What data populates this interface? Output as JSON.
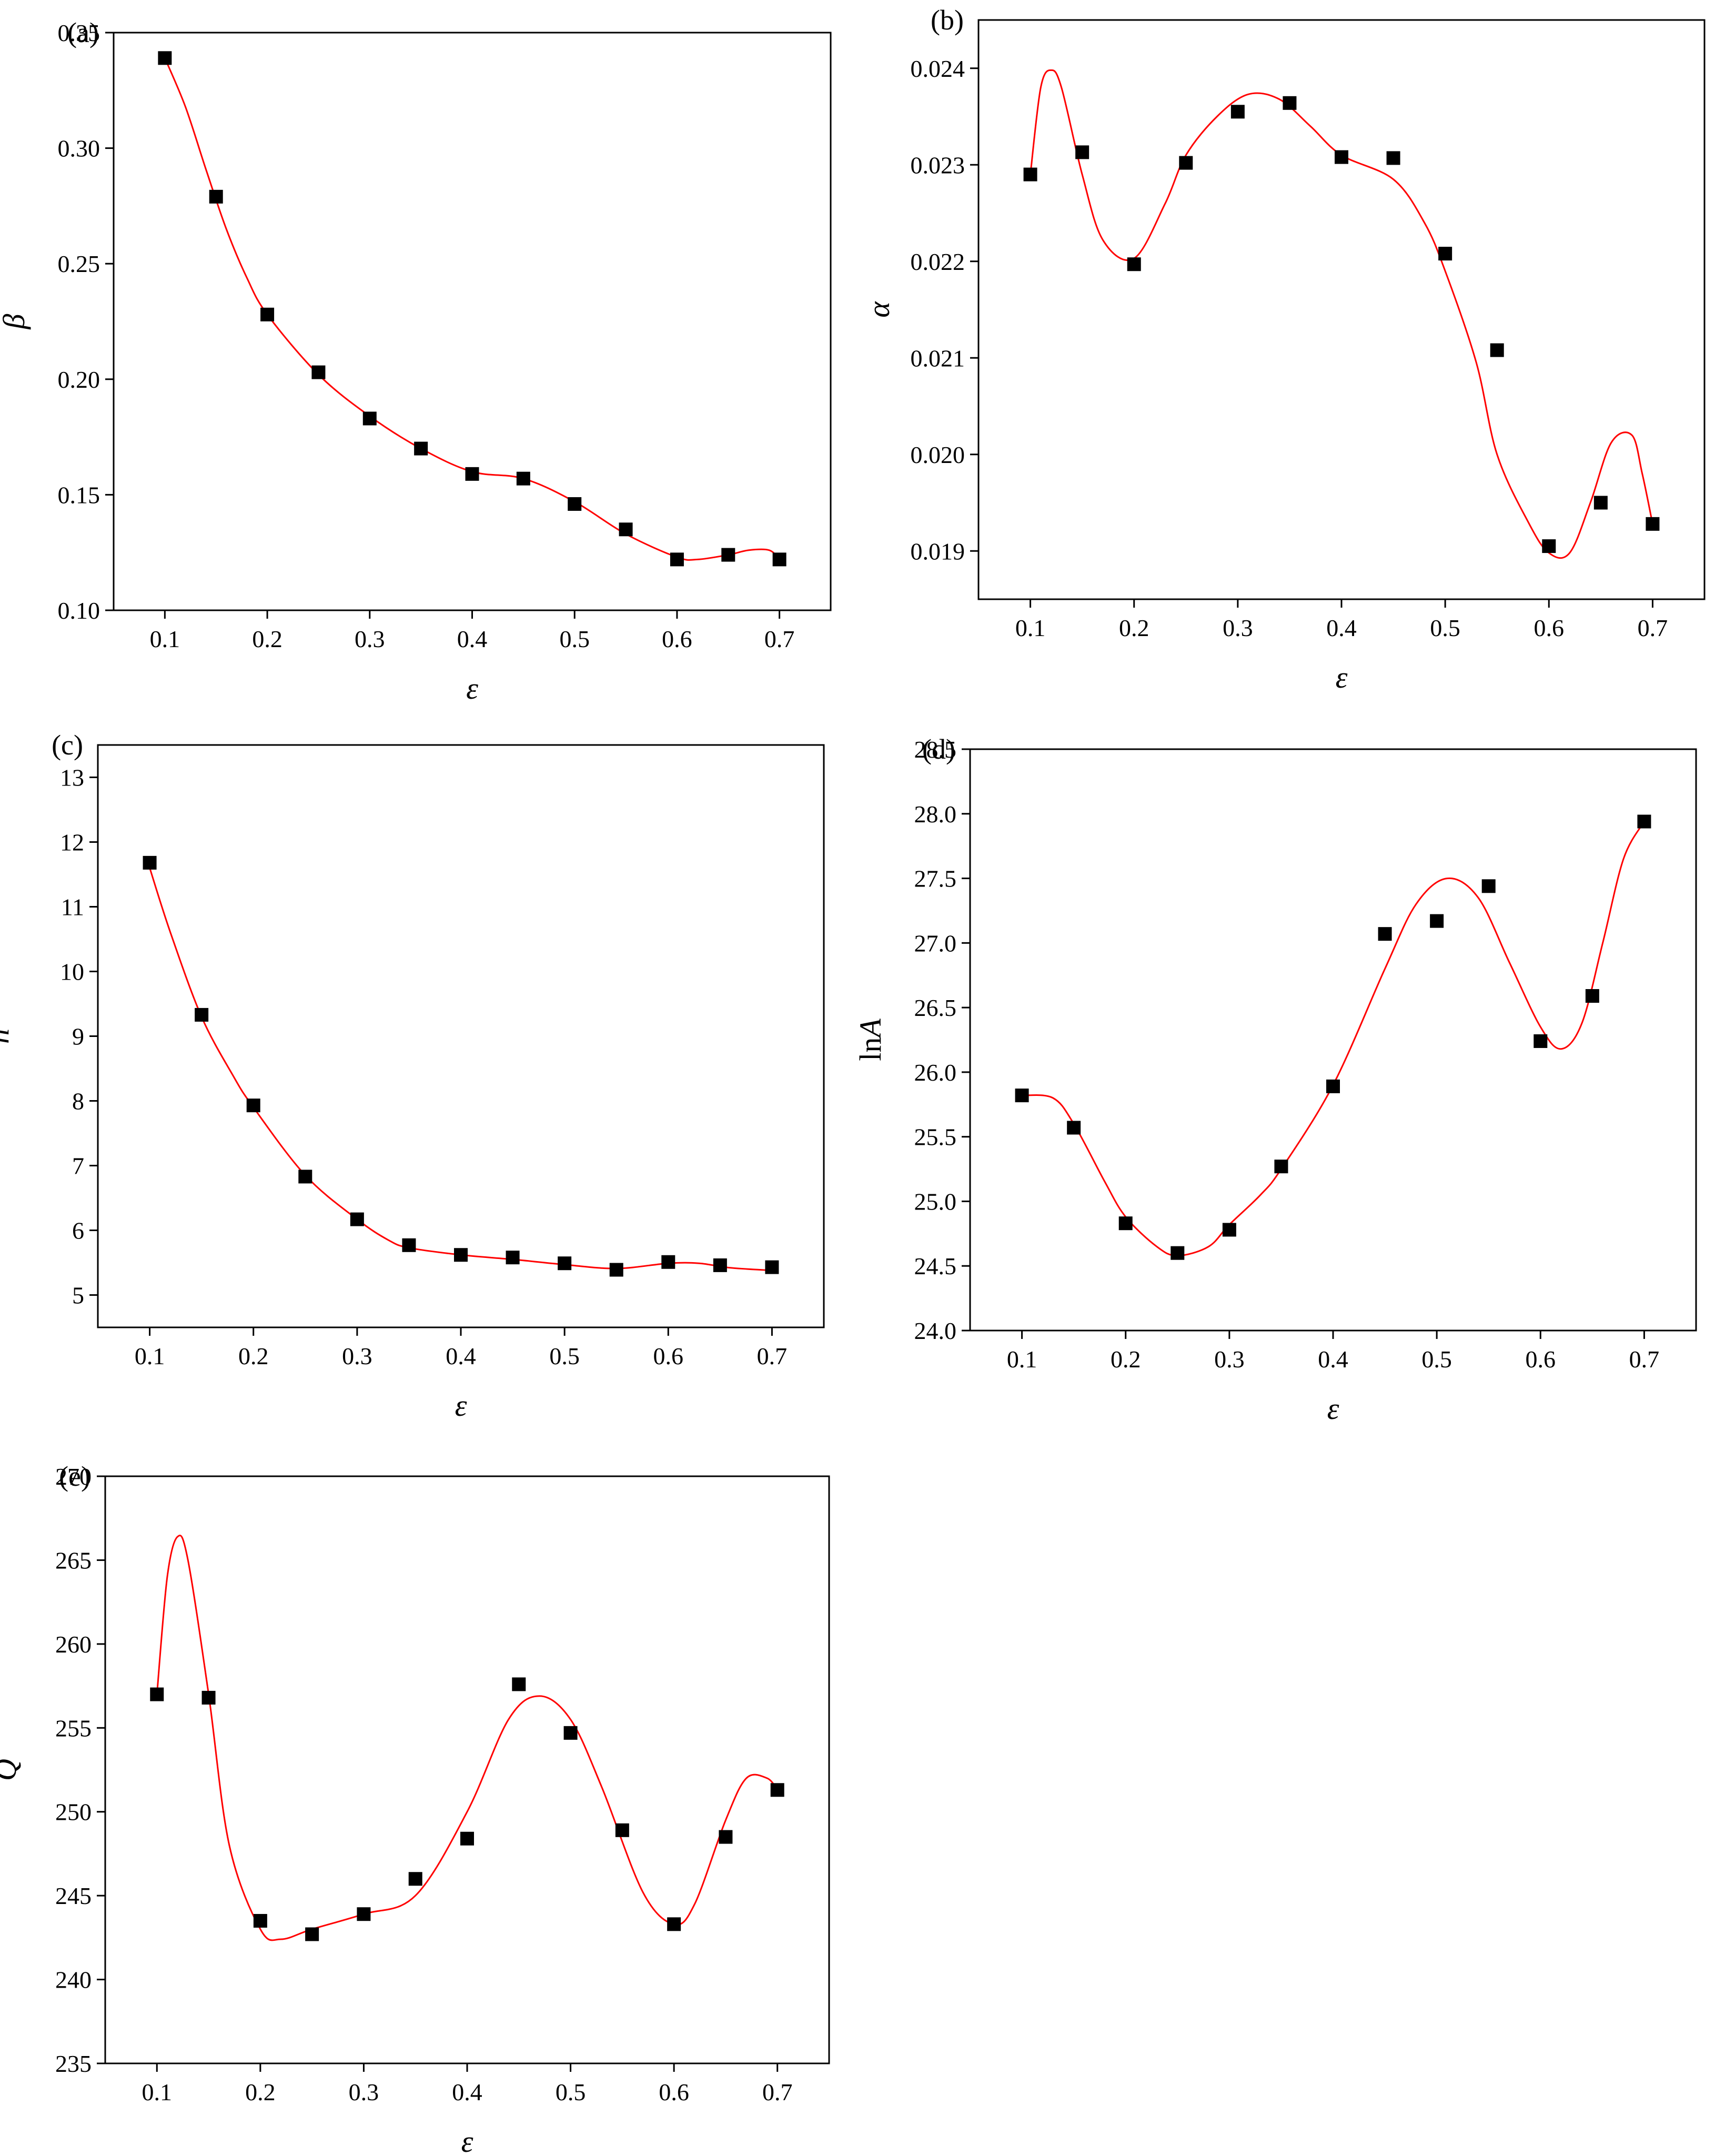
{
  "figure": {
    "fit_color": "#ff0000",
    "marker_color": "#000000"
  },
  "chart_data": [
    {
      "id": "a",
      "type": "scatter",
      "panel_label": "(a)",
      "xlabel": "ε",
      "ylabel": "β",
      "xlim": [
        0.05,
        0.75
      ],
      "ylim": [
        0.1,
        0.35
      ],
      "xticks": [
        0.1,
        0.2,
        0.3,
        0.4,
        0.5,
        0.6,
        0.7
      ],
      "yticks": [
        0.1,
        0.15,
        0.2,
        0.25,
        0.3,
        0.35
      ],
      "xtick_labels": [
        "0.1",
        "0.2",
        "0.3",
        "0.4",
        "0.5",
        "0.6",
        "0.7"
      ],
      "ytick_labels": [
        "0.10",
        "0.15",
        "0.20",
        "0.25",
        "0.30",
        "0.35"
      ],
      "series": [
        {
          "name": "data",
          "x": [
            0.1,
            0.15,
            0.2,
            0.25,
            0.3,
            0.35,
            0.4,
            0.45,
            0.5,
            0.55,
            0.6,
            0.65,
            0.7
          ],
          "y": [
            0.339,
            0.279,
            0.228,
            0.203,
            0.183,
            0.17,
            0.159,
            0.157,
            0.146,
            0.135,
            0.122,
            0.124,
            0.122
          ]
        },
        {
          "name": "fit",
          "x": [
            0.1,
            0.12,
            0.14,
            0.16,
            0.18,
            0.2,
            0.25,
            0.3,
            0.35,
            0.4,
            0.45,
            0.5,
            0.55,
            0.6,
            0.62,
            0.65,
            0.67,
            0.69,
            0.7
          ],
          "y": [
            0.339,
            0.318,
            0.291,
            0.265,
            0.244,
            0.228,
            0.202,
            0.184,
            0.17,
            0.16,
            0.157,
            0.147,
            0.133,
            0.123,
            0.122,
            0.124,
            0.126,
            0.126,
            0.122
          ]
        }
      ]
    },
    {
      "id": "b",
      "type": "scatter",
      "panel_label": "(b)",
      "xlabel": "ε",
      "ylabel": "α",
      "xlim": [
        0.05,
        0.75
      ],
      "ylim": [
        0.0185,
        0.0245
      ],
      "xticks": [
        0.1,
        0.2,
        0.3,
        0.4,
        0.5,
        0.6,
        0.7
      ],
      "yticks": [
        0.019,
        0.02,
        0.021,
        0.022,
        0.023,
        0.024
      ],
      "xtick_labels": [
        "0.1",
        "0.2",
        "0.3",
        "0.4",
        "0.5",
        "0.6",
        "0.7"
      ],
      "ytick_labels": [
        "0.019",
        "0.020",
        "0.021",
        "0.022",
        "0.023",
        "0.024"
      ],
      "series": [
        {
          "name": "data",
          "x": [
            0.1,
            0.15,
            0.2,
            0.25,
            0.3,
            0.35,
            0.4,
            0.45,
            0.5,
            0.55,
            0.6,
            0.65,
            0.7
          ],
          "y": [
            0.0229,
            0.02313,
            0.02197,
            0.02302,
            0.02355,
            0.02364,
            0.02308,
            0.02307,
            0.02208,
            0.02108,
            0.01905,
            0.0195,
            0.01928
          ]
        },
        {
          "name": "fit",
          "x": [
            0.1,
            0.11,
            0.12,
            0.13,
            0.15,
            0.17,
            0.2,
            0.23,
            0.25,
            0.28,
            0.31,
            0.34,
            0.37,
            0.4,
            0.45,
            0.48,
            0.5,
            0.53,
            0.55,
            0.58,
            0.6,
            0.62,
            0.64,
            0.66,
            0.68,
            0.69,
            0.7
          ],
          "y": [
            0.0229,
            0.0238,
            0.02398,
            0.0238,
            0.0229,
            0.02222,
            0.02203,
            0.0226,
            0.0231,
            0.0235,
            0.02373,
            0.02368,
            0.0234,
            0.0231,
            0.02285,
            0.0224,
            0.0219,
            0.02095,
            0.02,
            0.0193,
            0.01898,
            0.01898,
            0.0195,
            0.02012,
            0.0202,
            0.0198,
            0.01928
          ]
        }
      ]
    },
    {
      "id": "c",
      "type": "scatter",
      "panel_label": "(c)",
      "xlabel": "ε",
      "ylabel": "n",
      "xlim": [
        0.05,
        0.75
      ],
      "ylim": [
        4.5,
        13.5
      ],
      "xticks": [
        0.1,
        0.2,
        0.3,
        0.4,
        0.5,
        0.6,
        0.7
      ],
      "yticks": [
        5,
        6,
        7,
        8,
        9,
        10,
        11,
        12,
        13
      ],
      "xtick_labels": [
        "0.1",
        "0.2",
        "0.3",
        "0.4",
        "0.5",
        "0.6",
        "0.7"
      ],
      "ytick_labels": [
        "5",
        "6",
        "7",
        "8",
        "9",
        "10",
        "11",
        "12",
        "13"
      ],
      "series": [
        {
          "name": "data",
          "x": [
            0.1,
            0.15,
            0.2,
            0.25,
            0.3,
            0.35,
            0.4,
            0.45,
            0.5,
            0.55,
            0.6,
            0.65,
            0.7
          ],
          "y": [
            11.68,
            9.33,
            7.93,
            6.83,
            6.17,
            5.77,
            5.62,
            5.58,
            5.49,
            5.39,
            5.51,
            5.46,
            5.43
          ]
        },
        {
          "name": "fit",
          "x": [
            0.1,
            0.12,
            0.15,
            0.18,
            0.2,
            0.25,
            0.3,
            0.33,
            0.35,
            0.4,
            0.45,
            0.5,
            0.55,
            0.6,
            0.63,
            0.66,
            0.7
          ],
          "y": [
            11.6,
            10.6,
            9.3,
            8.4,
            7.9,
            6.85,
            6.17,
            5.85,
            5.73,
            5.62,
            5.55,
            5.47,
            5.41,
            5.49,
            5.49,
            5.42,
            5.38
          ]
        }
      ]
    },
    {
      "id": "d",
      "type": "scatter",
      "panel_label": "(d)",
      "xlabel": "ε",
      "ylabel": "lnA",
      "ylabel_prefix": "ln",
      "ylabel_var": "A",
      "xlim": [
        0.05,
        0.75
      ],
      "ylim": [
        24.0,
        28.5
      ],
      "xticks": [
        0.1,
        0.2,
        0.3,
        0.4,
        0.5,
        0.6,
        0.7
      ],
      "yticks": [
        24.0,
        24.5,
        25.0,
        25.5,
        26.0,
        26.5,
        27.0,
        27.5,
        28.0,
        28.5
      ],
      "xtick_labels": [
        "0.1",
        "0.2",
        "0.3",
        "0.4",
        "0.5",
        "0.6",
        "0.7"
      ],
      "ytick_labels": [
        "24.0",
        "24.5",
        "25.0",
        "25.5",
        "26.0",
        "26.5",
        "27.0",
        "27.5",
        "28.0",
        "28.5"
      ],
      "series": [
        {
          "name": "data",
          "x": [
            0.1,
            0.15,
            0.2,
            0.25,
            0.3,
            0.35,
            0.4,
            0.45,
            0.5,
            0.55,
            0.6,
            0.65,
            0.7
          ],
          "y": [
            25.82,
            25.57,
            24.83,
            24.6,
            24.78,
            25.27,
            25.89,
            27.07,
            27.17,
            27.44,
            26.24,
            26.59,
            27.94
          ]
        },
        {
          "name": "fit",
          "x": [
            0.1,
            0.13,
            0.15,
            0.18,
            0.2,
            0.23,
            0.25,
            0.28,
            0.3,
            0.33,
            0.35,
            0.4,
            0.45,
            0.48,
            0.51,
            0.54,
            0.57,
            0.6,
            0.62,
            0.64,
            0.66,
            0.68,
            0.7
          ],
          "y": [
            25.82,
            25.8,
            25.6,
            25.15,
            24.88,
            24.65,
            24.58,
            24.65,
            24.82,
            25.05,
            25.25,
            25.9,
            26.8,
            27.3,
            27.5,
            27.35,
            26.85,
            26.35,
            26.18,
            26.38,
            27.0,
            27.65,
            27.94
          ]
        }
      ]
    },
    {
      "id": "e",
      "type": "scatter",
      "panel_label": "(e)",
      "xlabel": "ε",
      "ylabel": "Q",
      "xlim": [
        0.05,
        0.75
      ],
      "ylim": [
        235,
        270
      ],
      "xticks": [
        0.1,
        0.2,
        0.3,
        0.4,
        0.5,
        0.6,
        0.7
      ],
      "yticks": [
        235,
        240,
        245,
        250,
        255,
        260,
        265,
        270
      ],
      "xtick_labels": [
        "0.1",
        "0.2",
        "0.3",
        "0.4",
        "0.5",
        "0.6",
        "0.7"
      ],
      "ytick_labels": [
        "235",
        "240",
        "245",
        "250",
        "255",
        "260",
        "265",
        "270"
      ],
      "series": [
        {
          "name": "data",
          "x": [
            0.1,
            0.15,
            0.2,
            0.25,
            0.3,
            0.35,
            0.4,
            0.45,
            0.5,
            0.55,
            0.6,
            0.65,
            0.7
          ],
          "y": [
            257.0,
            256.8,
            243.5,
            242.7,
            243.9,
            246.0,
            248.4,
            257.6,
            254.7,
            248.9,
            243.3,
            248.5,
            251.3
          ]
        },
        {
          "name": "fit",
          "x": [
            0.1,
            0.11,
            0.12,
            0.13,
            0.15,
            0.17,
            0.2,
            0.22,
            0.25,
            0.3,
            0.35,
            0.4,
            0.44,
            0.47,
            0.5,
            0.53,
            0.57,
            0.6,
            0.62,
            0.65,
            0.67,
            0.69,
            0.7
          ],
          "y": [
            257.0,
            264.0,
            266.4,
            265.0,
            257.0,
            248.0,
            243.0,
            242.4,
            243.0,
            243.9,
            245.0,
            250.0,
            255.5,
            256.9,
            255.5,
            251.5,
            245.2,
            243.3,
            244.5,
            249.5,
            252.0,
            252.0,
            251.3
          ]
        }
      ]
    }
  ]
}
